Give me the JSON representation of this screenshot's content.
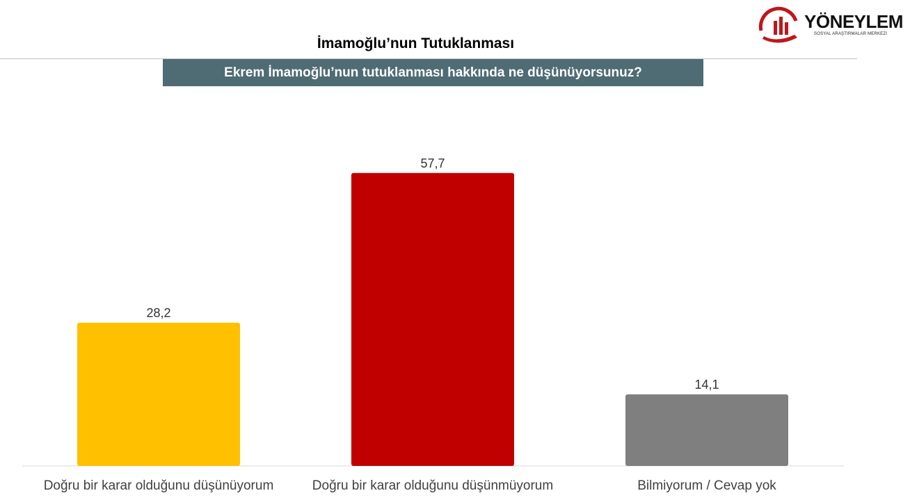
{
  "header": {
    "title": "İmamoğlu’nun Tutuklanması",
    "question": "Ekrem İmamoğlu’nun tutuklanması hakkında ne düşünüyorsunuz?"
  },
  "logo": {
    "name": "YÖNEYLEM",
    "subtitle": "SOSYAL ARAŞTIRMALAR MERKEZİ",
    "colors": {
      "accent": "#c0161c",
      "text": "#111111"
    }
  },
  "chart_data": {
    "type": "bar",
    "title": "",
    "xlabel": "",
    "ylabel": "",
    "categories": [
      "Doğru bir karar olduğunu düşünüyorum",
      "Doğru bir karar olduğunu düşünmüyorum",
      "Bilmiyorum / Cevap yok"
    ],
    "values": [
      28.2,
      57.7,
      14.1
    ],
    "value_labels": [
      "28,2",
      "57,7",
      "14,1"
    ],
    "colors": [
      "#ffc000",
      "#c00000",
      "#7f7f7f"
    ],
    "ylim": [
      0,
      60
    ],
    "grid": false,
    "legend": "none"
  }
}
